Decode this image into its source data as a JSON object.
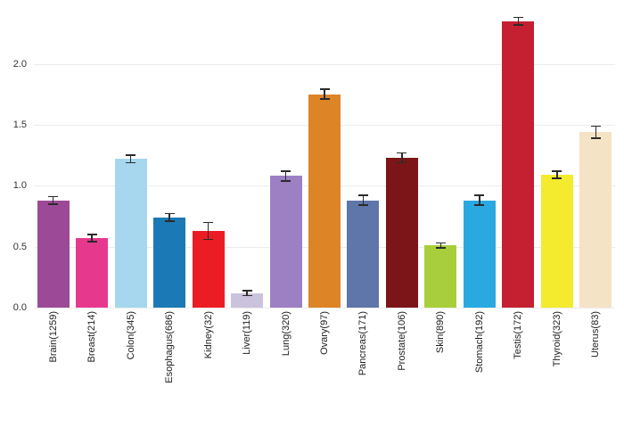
{
  "chart_data": {
    "type": "bar",
    "title": "",
    "xlabel": "",
    "ylabel": "",
    "categories": [
      "Brain(1259)",
      "Breast(214)",
      "Colon(345)",
      "Esophagus(686)",
      "Kidney(32)",
      "Liver(119)",
      "Lung(320)",
      "Ovary(97)",
      "Pancreas(171)",
      "Prostate(106)",
      "Skin(890)",
      "Stomach(192)",
      "Testis(172)",
      "Thyroid(323)",
      "Uterus(83)"
    ],
    "values": [
      0.88,
      0.57,
      1.22,
      0.74,
      0.63,
      0.12,
      1.08,
      1.75,
      0.88,
      1.23,
      0.51,
      0.88,
      2.35,
      1.09,
      1.44
    ],
    "errors": [
      0.03,
      0.03,
      0.03,
      0.03,
      0.07,
      0.02,
      0.04,
      0.04,
      0.04,
      0.04,
      0.02,
      0.04,
      0.03,
      0.03,
      0.05
    ],
    "bar_colors": [
      "#9C4A97",
      "#E6398E",
      "#A6D7EF",
      "#1B79B5",
      "#EC1C24",
      "#CBC3DD",
      "#9D7FC4",
      "#DD8427",
      "#5E76AA",
      "#7C1518",
      "#A8CF3B",
      "#2AA9E1",
      "#C42032",
      "#F5EB2E",
      "#F5E3C5"
    ],
    "error_bar_color": "#2b2b2b",
    "yticks": [
      0.0,
      0.5,
      1.0,
      1.5,
      2.0
    ],
    "ylim": [
      0,
      2.45
    ],
    "grid": true,
    "legend_position": "none"
  }
}
